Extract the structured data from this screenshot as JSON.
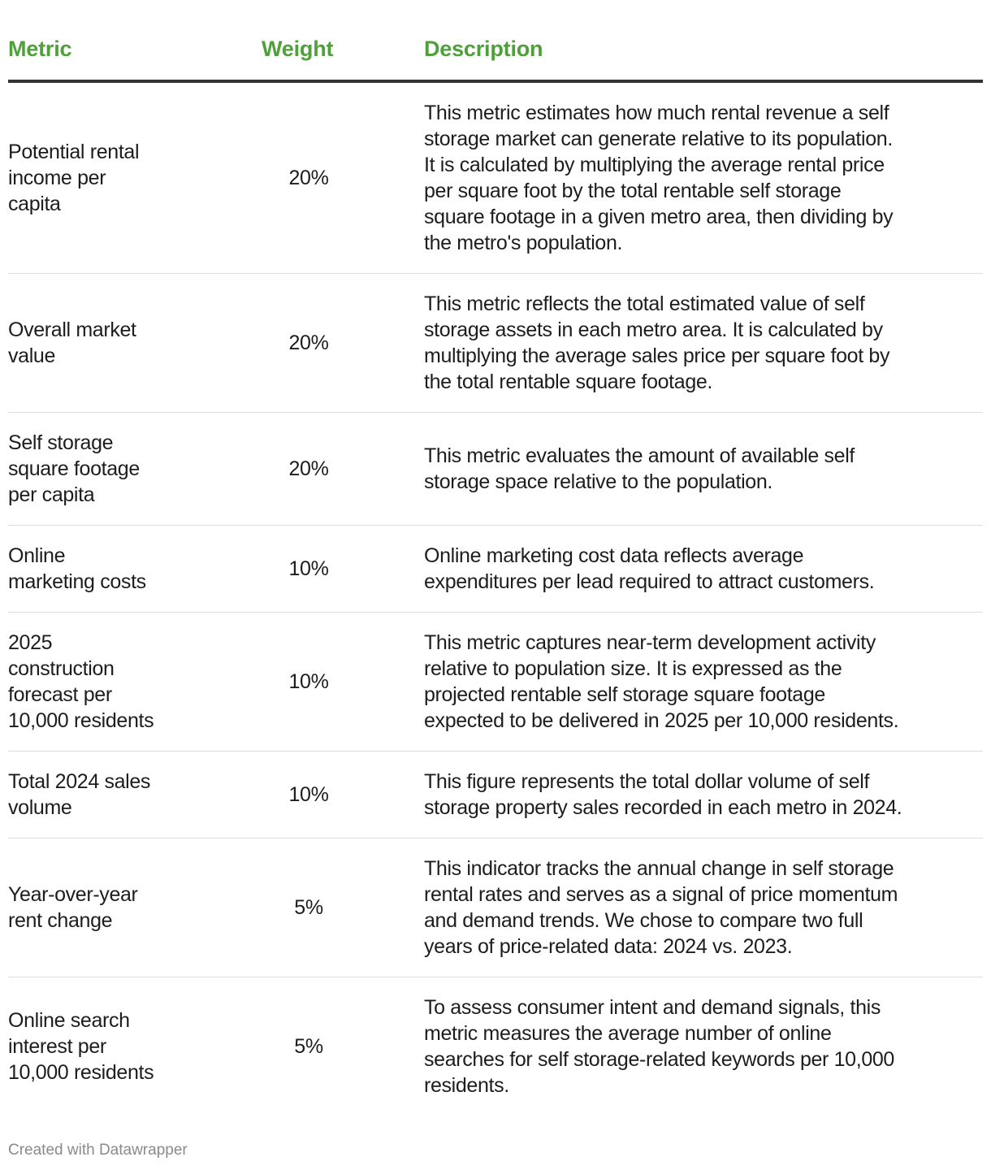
{
  "header": {
    "metric": "Metric",
    "weight": "Weight",
    "description": "Description"
  },
  "colors": {
    "header_accent": "#4fa03a",
    "text": "#1d1d1d",
    "rule": "#333333"
  },
  "rows": [
    {
      "metric": [
        "Potential rental",
        "income per",
        "capita"
      ],
      "weight": "20%",
      "description": [
        "This metric estimates how much rental revenue a self",
        "storage market can generate relative to its population.",
        "It is calculated by multiplying the average rental price",
        "per square foot by the total rentable self storage",
        "square footage in a given metro area, then dividing by",
        "the metro's population."
      ]
    },
    {
      "metric": [
        "Overall market",
        "value"
      ],
      "weight": "20%",
      "description": [
        "This metric reflects the total estimated value of self",
        "storage assets in each metro area. It is calculated by",
        "multiplying the average sales price per square foot by",
        "the total rentable square footage."
      ]
    },
    {
      "metric": [
        "Self storage",
        "square footage",
        "per capita"
      ],
      "weight": "20%",
      "description": [
        "This metric evaluates the amount of available self",
        "storage space relative to the population."
      ]
    },
    {
      "metric": [
        "Online",
        "marketing costs"
      ],
      "weight": "10%",
      "description": [
        "Online marketing cost data reflects average",
        "expenditures per lead required to attract customers."
      ]
    },
    {
      "metric": [
        "2025",
        "construction",
        "forecast per",
        "10,000 residents"
      ],
      "weight": "10%",
      "description": [
        "This metric captures near-term development activity",
        "relative to population size. It is expressed as the",
        "projected rentable self storage square footage",
        "expected to be delivered in 2025 per 10,000 residents."
      ]
    },
    {
      "metric": [
        "Total 2024 sales",
        "volume"
      ],
      "weight": "10%",
      "description": [
        "This figure represents the total dollar volume of self",
        "storage property sales recorded in each metro in 2024."
      ]
    },
    {
      "metric": [
        "Year-over-year",
        "rent change"
      ],
      "weight": "5%",
      "description": [
        "This indicator tracks the annual change in self storage",
        "rental rates and serves as a signal of price momentum",
        "and demand trends. We chose to compare two full",
        "years of price-related data: 2024 vs. 2023."
      ]
    },
    {
      "metric": [
        "Online search",
        "interest per",
        "10,000 residents"
      ],
      "weight": "5%",
      "description": [
        "To assess consumer intent and demand signals, this",
        "metric measures the average number of online",
        "searches for self storage-related keywords per 10,000",
        "residents."
      ]
    }
  ],
  "footer": "Created with Datawrapper"
}
